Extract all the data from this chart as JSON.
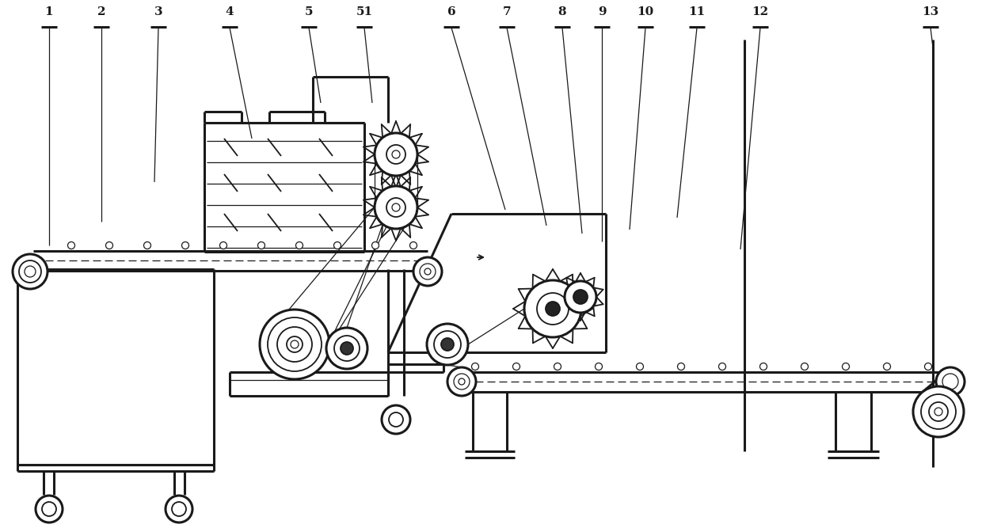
{
  "bg_color": "#ffffff",
  "line_color": "#1a1a1a",
  "lw": 1.6,
  "lw_thick": 2.2,
  "lw_thin": 0.9,
  "lw_med": 1.3,
  "labels": [
    [
      "1",
      62,
      30,
      62,
      310
    ],
    [
      "2",
      128,
      30,
      128,
      280
    ],
    [
      "3",
      200,
      30,
      195,
      230
    ],
    [
      "4",
      290,
      30,
      318,
      175
    ],
    [
      "5",
      390,
      30,
      405,
      130
    ],
    [
      "51",
      460,
      30,
      470,
      130
    ],
    [
      "6",
      570,
      30,
      638,
      265
    ],
    [
      "7",
      640,
      30,
      690,
      285
    ],
    [
      "8",
      710,
      30,
      735,
      295
    ],
    [
      "9",
      760,
      30,
      760,
      305
    ],
    [
      "10",
      815,
      30,
      795,
      290
    ],
    [
      "11",
      880,
      30,
      855,
      275
    ],
    [
      "12",
      960,
      30,
      935,
      315
    ],
    [
      "13",
      1175,
      30,
      1178,
      60
    ]
  ]
}
